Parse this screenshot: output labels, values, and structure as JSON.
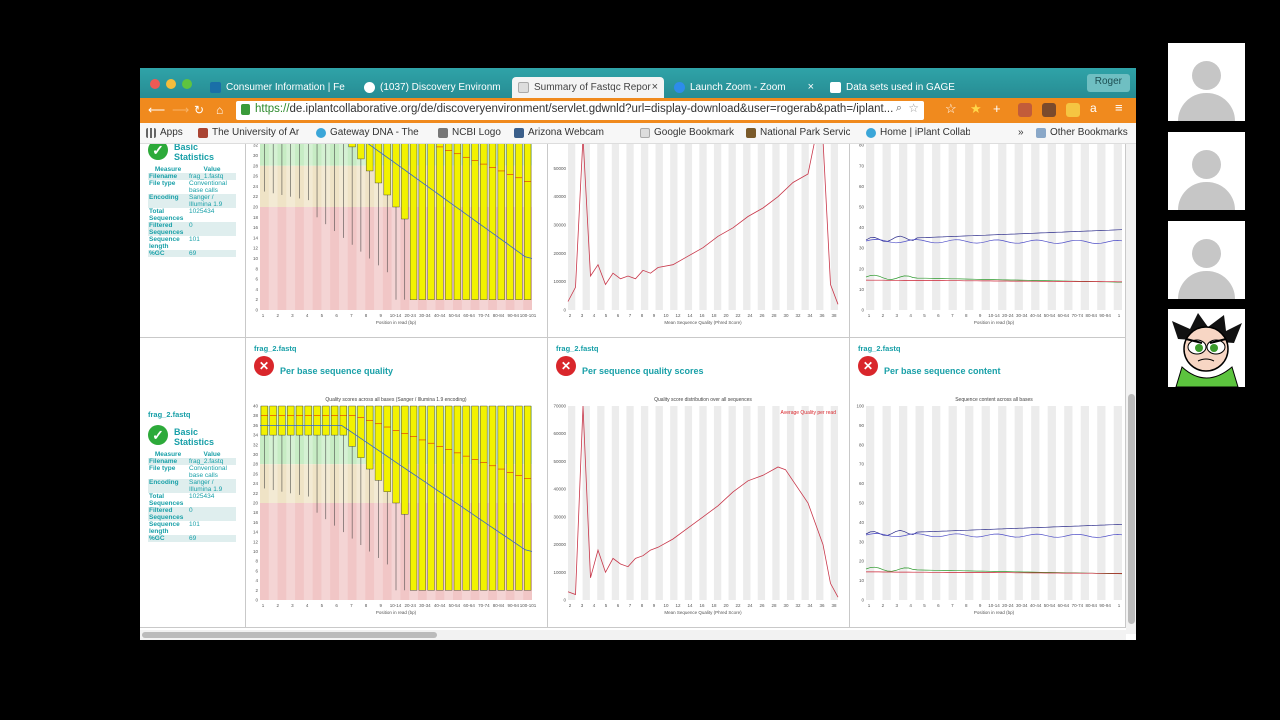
{
  "browser": {
    "tabs": [
      {
        "label": "Consumer Information | Fe",
        "active": false
      },
      {
        "label": "(1037) Discovery Environm",
        "active": false
      },
      {
        "label": "Summary of Fastqc Repor",
        "active": true
      },
      {
        "label": "Launch Zoom - Zoom",
        "active": false
      },
      {
        "label": "Data sets used in GAGE",
        "active": false
      }
    ],
    "profile_label": "Roger",
    "url_https": "https://",
    "url_rest": "de.iplantcollaborative.org/de/discoveryenvironment/servlet.gdwnld?url=display-download&user=rogerab&path=/iplant...",
    "bookmarks": [
      "Apps",
      "The University of Ar",
      "Gateway DNA - The",
      "NCBI Logo",
      "Arizona Webcam",
      "Google Bookmark",
      "National Park Servic",
      "Home | iPlant Collab"
    ],
    "bookmarks_overflow": "»",
    "other_bookmarks": "Other Bookmarks"
  },
  "rows": [
    {
      "stats": {
        "file": "",
        "title": "Basic Statistics",
        "header": [
          "Measure",
          "Value"
        ],
        "rows": [
          [
            "Filename",
            "frag_1.fastq"
          ],
          [
            "File type",
            "Conventional base calls"
          ],
          [
            "Encoding",
            "Sanger / Illumina 1.9"
          ],
          [
            "Total Sequences",
            "1025434"
          ],
          [
            "Filtered Sequences",
            "0"
          ],
          [
            "Sequence length",
            "101"
          ],
          [
            "%GC",
            "69"
          ]
        ]
      },
      "quality": {
        "xlabel": "Position in read (bp)"
      },
      "scores": {
        "xlabel": "Mean Sequence Quality (Phred Score)",
        "yticks": [
          "0",
          "10000",
          "20000",
          "30000",
          "40000",
          "50000",
          "60000"
        ]
      },
      "content": {
        "xlabel": "Position in read (bp)"
      }
    },
    {
      "stats": {
        "file": "frag_2.fastq",
        "title": "Basic Statistics",
        "header": [
          "Measure",
          "Value"
        ],
        "rows": [
          [
            "Filename",
            "frag_2.fastq"
          ],
          [
            "File type",
            "Conventional base calls"
          ],
          [
            "Encoding",
            "Sanger / Illumina 1.9"
          ],
          [
            "Total Sequences",
            "1025434"
          ],
          [
            "Filtered Sequences",
            "0"
          ],
          [
            "Sequence length",
            "101"
          ],
          [
            "%GC",
            "69"
          ]
        ]
      },
      "quality": {
        "file": "frag_2.fastq",
        "module": "Per base sequence quality",
        "ctitle": "Quality scores across all bases (Sanger / Illumina 1.9 encoding)",
        "xlabel": "Position in read (bp)"
      },
      "scores": {
        "file": "frag_2.fastq",
        "module": "Per sequence quality scores",
        "ctitle": "Quality score distribution over all sequences",
        "legend": "Average Quality per read",
        "xlabel": "Mean Sequence Quality (Phred Score)",
        "yticks": [
          "0",
          "10000",
          "20000",
          "30000",
          "40000",
          "50000",
          "60000",
          "70000"
        ]
      },
      "content": {
        "file": "frag_2.fastq",
        "module": "Per base sequence content",
        "ctitle": "Sequence content across all bases",
        "xlabel": "Position in read (bp)"
      }
    }
  ],
  "axes": {
    "quality_yticks": [
      "0",
      "2",
      "4",
      "6",
      "8",
      "10",
      "12",
      "14",
      "16",
      "18",
      "20",
      "22",
      "24",
      "26",
      "28",
      "30",
      "32",
      "34",
      "36",
      "38",
      "40"
    ],
    "quality_xticks": [
      "1",
      "2",
      "3",
      "4",
      "5",
      "6",
      "7",
      "8",
      "9",
      "10-14",
      "20-24",
      "30-34",
      "40-44",
      "50-54",
      "60-64",
      "70-74",
      "80-84",
      "90-94",
      "100-101"
    ],
    "scores_xticks": [
      "2",
      "3",
      "4",
      "5",
      "6",
      "7",
      "8",
      "9",
      "10",
      "12",
      "14",
      "16",
      "18",
      "20",
      "22",
      "24",
      "26",
      "28",
      "30",
      "32",
      "34",
      "36",
      "38"
    ],
    "content_yticks": [
      "0",
      "10",
      "20",
      "30",
      "40",
      "50",
      "60",
      "70",
      "80",
      "90",
      "100"
    ],
    "content_xticks": [
      "1",
      "2",
      "3",
      "4",
      "5",
      "6",
      "7",
      "8",
      "9",
      "10-14",
      "20-24",
      "30-34",
      "40-44",
      "50-54",
      "60-64",
      "70-74",
      "80-84",
      "90-94",
      "1"
    ]
  },
  "participants": [
    {
      "kind": "placeholder"
    },
    {
      "kind": "placeholder"
    },
    {
      "kind": "placeholder"
    },
    {
      "kind": "cartoon"
    }
  ],
  "colors": {
    "teal": "#19a0a8",
    "fail": "#d9262b",
    "pass": "#2daa3a",
    "bar": "#f2f200",
    "toolbar": "#f08a1e"
  }
}
